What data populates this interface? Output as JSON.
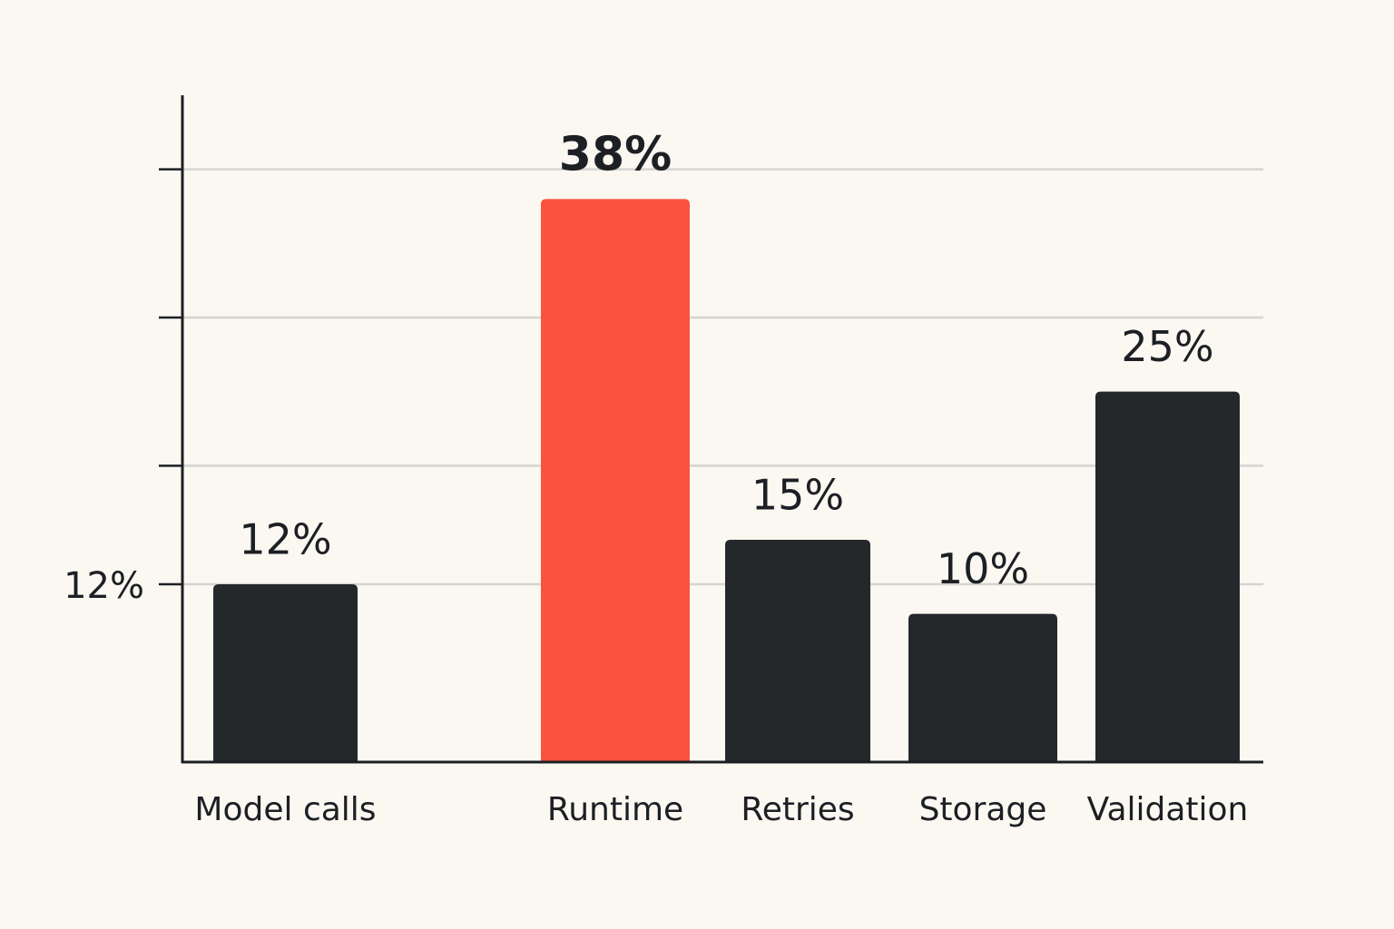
{
  "chart_data": {
    "type": "bar",
    "categories": [
      "Model calls",
      "Runtime",
      "Retries",
      "Storage",
      "Validation"
    ],
    "values": [
      12,
      38,
      15,
      10,
      25
    ],
    "value_labels": [
      "12%",
      "38%",
      "15%",
      "10%",
      "25%"
    ],
    "colors": [
      "#24282b",
      "#fa523f",
      "#24282b",
      "#24282b",
      "#24282b"
    ],
    "ylim": [
      0,
      45
    ],
    "yticks": [
      {
        "value": 12,
        "label": "12%"
      },
      {
        "value": 20,
        "label": null
      },
      {
        "value": 30,
        "label": null
      },
      {
        "value": 40,
        "label": null
      }
    ],
    "grid": true
  }
}
